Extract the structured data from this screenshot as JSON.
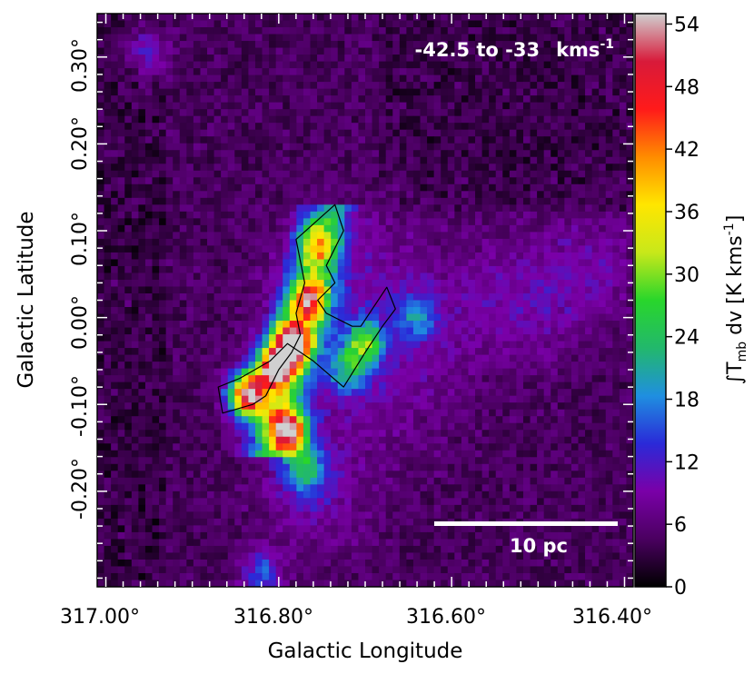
{
  "chart_data": {
    "type": "heatmap",
    "title": "",
    "annotation": {
      "velocity_range": "-42.5 to -33",
      "unit_base": "kms",
      "unit_exp": "-1"
    },
    "scale_bar": {
      "label": "10 pc",
      "length_pc": 10
    },
    "xlabel": "Galactic Longitude",
    "ylabel": "Galactic Latitude",
    "x_ticks": [
      "317.00°",
      "316.80°",
      "316.60°",
      "316.40°"
    ],
    "y_ticks": [
      "0.30°",
      "0.20°",
      "0.10°",
      "0.00°",
      "-0.10°",
      "-0.20°"
    ],
    "xlim": [
      317.01,
      316.39
    ],
    "ylim": [
      -0.31,
      0.35
    ],
    "colorbar": {
      "label_int": "∫T",
      "label_sub": "mb",
      "label_rest": " dv [K kms",
      "label_exp": "-1",
      "label_close": "]",
      "range": [
        0,
        55
      ],
      "ticks": [
        "0",
        "6",
        "12",
        "18",
        "24",
        "30",
        "36",
        "42",
        "48",
        "54"
      ],
      "colors": [
        "#000000",
        "#4a0060",
        "#7a00a8",
        "#2a2ad8",
        "#1f8fe0",
        "#22b86c",
        "#29d62b",
        "#c8e81a",
        "#ffe600",
        "#ff8c00",
        "#ff1a1a",
        "#d81a3a",
        "#d0d0d0"
      ]
    },
    "features": [
      {
        "l": 316.755,
        "b": 0.085,
        "peak": 28
      },
      {
        "l": 316.765,
        "b": 0.02,
        "peak": 36
      },
      {
        "l": 316.785,
        "b": -0.03,
        "peak": 50
      },
      {
        "l": 316.805,
        "b": -0.06,
        "peak": 46
      },
      {
        "l": 316.835,
        "b": -0.09,
        "peak": 50
      },
      {
        "l": 316.79,
        "b": -0.13,
        "peak": 46
      },
      {
        "l": 316.7,
        "b": -0.03,
        "peak": 24
      },
      {
        "l": 316.64,
        "b": 0.0,
        "peak": 16
      },
      {
        "l": 316.72,
        "b": -0.06,
        "peak": 18
      },
      {
        "l": 316.77,
        "b": -0.175,
        "peak": 22
      },
      {
        "l": 316.82,
        "b": -0.295,
        "peak": 16
      },
      {
        "l": 316.95,
        "b": 0.305,
        "peak": 14
      }
    ],
    "contour_l": [
      316.735,
      316.725,
      316.745,
      316.735,
      316.755,
      316.745,
      316.735,
      316.715,
      316.705,
      316.675,
      316.665,
      316.68,
      316.7,
      316.725,
      316.76,
      316.79,
      316.81,
      316.845,
      316.87,
      316.865,
      316.83,
      316.815,
      316.8,
      316.785,
      316.775,
      316.78,
      316.77,
      316.78
    ],
    "contour_b": [
      0.13,
      0.1,
      0.06,
      0.04,
      0.02,
      0.005,
      0.0,
      -0.01,
      -0.01,
      0.035,
      0.01,
      -0.01,
      -0.04,
      -0.08,
      -0.05,
      -0.03,
      -0.05,
      -0.07,
      -0.08,
      -0.11,
      -0.1,
      -0.09,
      -0.06,
      -0.04,
      -0.02,
      0.005,
      0.04,
      0.09
    ]
  }
}
